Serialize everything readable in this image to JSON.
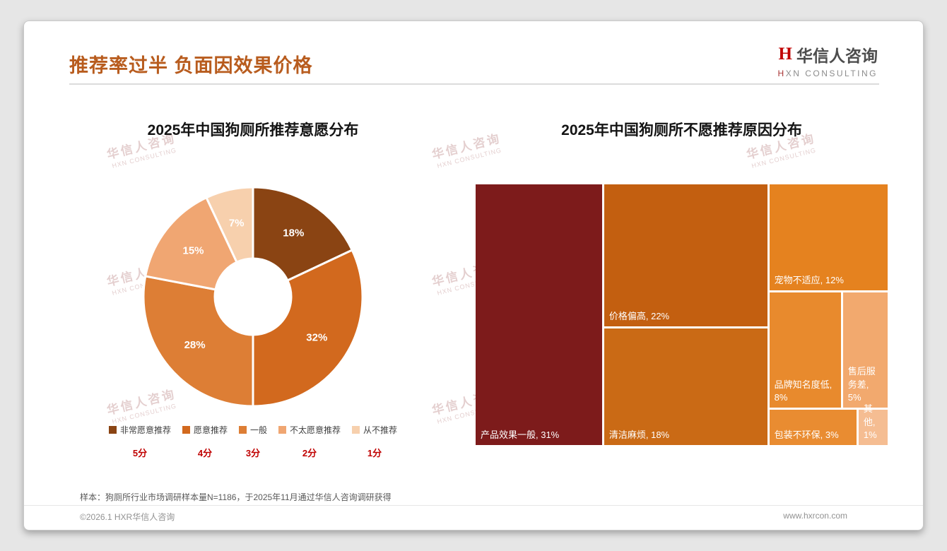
{
  "slide": {
    "title": "推荐率过半 负面因效果价格",
    "logo": {
      "icon": "H",
      "cn": "华信人咨询",
      "en_first": "H",
      "en_rest": "XN CONSULTING"
    },
    "watermark": {
      "cn": "华信人咨询",
      "en": "HXN CONSULTING"
    },
    "sample_note": "样本：狗厕所行业市场调研样本量N=1186，于2025年11月通过华信人咨询调研获得",
    "copyright": "©2026.1 HXR华信人咨询",
    "website": "www.hxrcon.com"
  },
  "chart_data": [
    {
      "type": "pie",
      "subtype": "donut",
      "title": "2025年中国狗厕所推荐意愿分布",
      "labels": [
        "非常愿意推荐",
        "愿意推荐",
        "一般",
        "不太愿意推荐",
        "从不推荐"
      ],
      "values": [
        18,
        32,
        28,
        15,
        7
      ],
      "unit": "%",
      "scores": [
        "5分",
        "4分",
        "3分",
        "2分",
        "1分"
      ],
      "colors": [
        "#8a4413",
        "#d2691e",
        "#dd7e35",
        "#f0a672",
        "#f7d0ad"
      ],
      "legend_position": "bottom",
      "start_angle_deg": 0,
      "direction": "clockwise"
    },
    {
      "type": "treemap",
      "title": "2025年中国狗厕所不愿推荐原因分布",
      "items": [
        {
          "label": "产品效果一般",
          "value": 31,
          "text": "产品效果一般, 31%",
          "color": "#7d1b1b"
        },
        {
          "label": "价格偏高",
          "value": 22,
          "text": "价格偏高, 22%",
          "color": "#c35f10"
        },
        {
          "label": "清洁麻烦",
          "value": 18,
          "text": "清洁麻烦, 18%",
          "color": "#ca6a15"
        },
        {
          "label": "宠物不适应",
          "value": 12,
          "text": "宠物不适应, 12%",
          "color": "#e5821f"
        },
        {
          "label": "品牌知名度低",
          "value": 8,
          "text": "品牌知名度低, 8%",
          "color": "#e88a2d"
        },
        {
          "label": "售后服务差",
          "value": 5,
          "text": "售后服务差, 5%",
          "color": "#f2a96e"
        },
        {
          "label": "包装不环保",
          "value": 3,
          "text": "包装不环保, 3%",
          "color": "#e98c31"
        },
        {
          "label": "其他",
          "value": 1,
          "text": "其他, 1%",
          "color": "#f5bd92"
        }
      ]
    }
  ]
}
